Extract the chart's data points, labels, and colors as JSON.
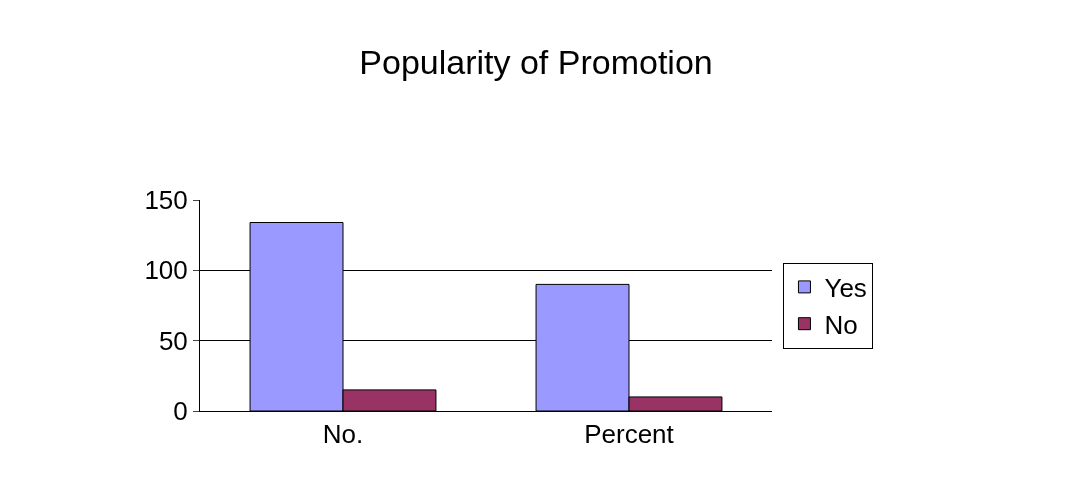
{
  "chart_data": {
    "type": "bar",
    "title": "Popularity of Promotion",
    "categories": [
      "No.",
      "Percent"
    ],
    "series": [
      {
        "name": "Yes",
        "color": "#9999ff",
        "values": [
          134,
          90
        ]
      },
      {
        "name": "No",
        "color": "#993366",
        "values": [
          15,
          10
        ]
      }
    ],
    "ylim": [
      0,
      150
    ],
    "yticks": [
      0,
      50,
      100,
      150
    ],
    "grid": "y",
    "legend": "right"
  }
}
